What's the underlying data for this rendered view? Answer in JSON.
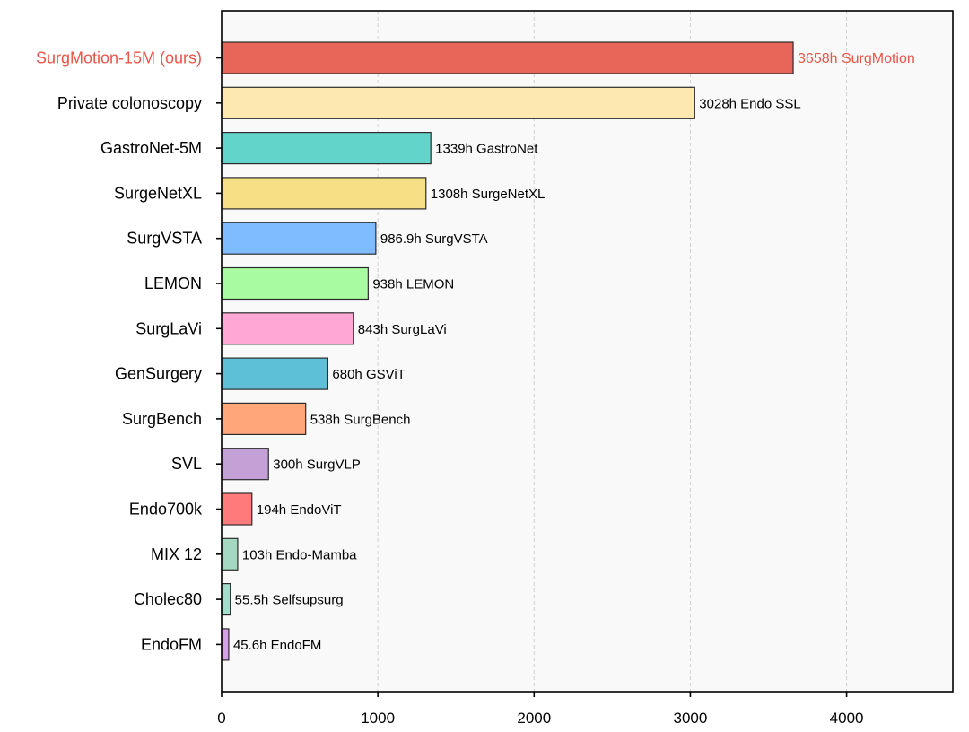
{
  "chart_data": {
    "type": "bar",
    "orientation": "horizontal",
    "title": "",
    "xlabel": "",
    "ylabel": "",
    "xlim": [
      0,
      4680
    ],
    "xticks": [
      0,
      1000,
      2000,
      3000,
      4000
    ],
    "grid": "vertical-dashed",
    "categories": [
      "SurgMotion-15M (ours)",
      "Private colonoscopy",
      "GastroNet-5M",
      "SurgeNetXL",
      "SurgVSTA",
      "LEMON",
      "SurgLaVi",
      "GenSurgery",
      "SurgBench",
      "SVL",
      "Endo700k",
      "MIX 12",
      "Cholec80",
      "EndoFM"
    ],
    "values": [
      3658,
      3028,
      1339,
      1308,
      986.9,
      938,
      843,
      680,
      538,
      300,
      194,
      103,
      55.5,
      45.6
    ],
    "bar_labels": [
      "3658h  SurgMotion",
      "3028h  Endo SSL",
      "1339h  GastroNet",
      "1308h  SurgeNetXL",
      "986.9h  SurgVSTA",
      "938h  LEMON",
      "843h  SurgLaVi",
      "680h  GSViT",
      "538h  SurgBench",
      "300h  SurgVLP",
      "194h  EndoViT",
      "103h  Endo-Mamba",
      "55.5h  Selfsupsurg",
      "45.6h  EndoFM"
    ],
    "colors": [
      "#e8655a",
      "#fde9b0",
      "#63d4c9",
      "#f6df85",
      "#7fbbff",
      "#a8fba0",
      "#ffa8d6",
      "#5ec0d6",
      "#ffa77a",
      "#c3a1d6",
      "#ff7b7b",
      "#a5d8c0",
      "#a4dccb",
      "#d4a1e6"
    ],
    "highlight_color": "#e8554a",
    "highlight_index": 0
  }
}
